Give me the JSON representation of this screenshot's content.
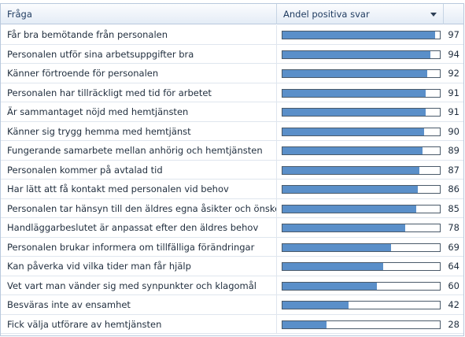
{
  "header": {
    "col_question": "Fråga",
    "col_share": "Andel positiva svar"
  },
  "colors": {
    "bar": "#5a8fc9",
    "header_bg": "#e4ecf6"
  },
  "icons": {
    "sort": "chevron-down-icon"
  },
  "rows": [
    {
      "question": "Får bra bemötande från personalen",
      "value": "97",
      "fraction": 0.97
    },
    {
      "question": "Personalen utför sina arbetsuppgifter bra",
      "value": "94",
      "fraction": 0.94
    },
    {
      "question": "Känner förtroende för personalen",
      "value": "92",
      "fraction": 0.92
    },
    {
      "question": "Personalen har tillräckligt med tid för arbetet",
      "value": "91",
      "fraction": 0.91
    },
    {
      "question": "Är sammantaget nöjd med hemtjänsten",
      "value": "91",
      "fraction": 0.91
    },
    {
      "question": "Känner sig trygg hemma med hemtjänst",
      "value": "90",
      "fraction": 0.9
    },
    {
      "question": "Fungerande samarbete mellan anhörig och hemtjänsten",
      "value": "89",
      "fraction": 0.89
    },
    {
      "question": "Personalen kommer på avtalad tid",
      "value": "87",
      "fraction": 0.87
    },
    {
      "question": "Har lätt att få kontakt med personalen vid behov",
      "value": "86",
      "fraction": 0.86
    },
    {
      "question": "Personalen tar hänsyn till den äldres egna åsikter och önskemål",
      "value": "85",
      "fraction": 0.85
    },
    {
      "question": "Handläggarbeslutet är anpassat efter den äldres behov",
      "value": "78",
      "fraction": 0.78
    },
    {
      "question": "Personalen brukar informera om tillfälliga förändringar",
      "value": "69",
      "fraction": 0.69
    },
    {
      "question": "Kan påverka vid vilka tider man får hjälp",
      "value": "64",
      "fraction": 0.64
    },
    {
      "question": "Vet vart man vänder sig med synpunkter och klagomål",
      "value": "60",
      "fraction": 0.6
    },
    {
      "question": "Besväras inte av ensamhet",
      "value": "42",
      "fraction": 0.42
    },
    {
      "question": "Fick välja utförare av hemtjänsten",
      "value": "28",
      "fraction": 0.28
    }
  ]
}
